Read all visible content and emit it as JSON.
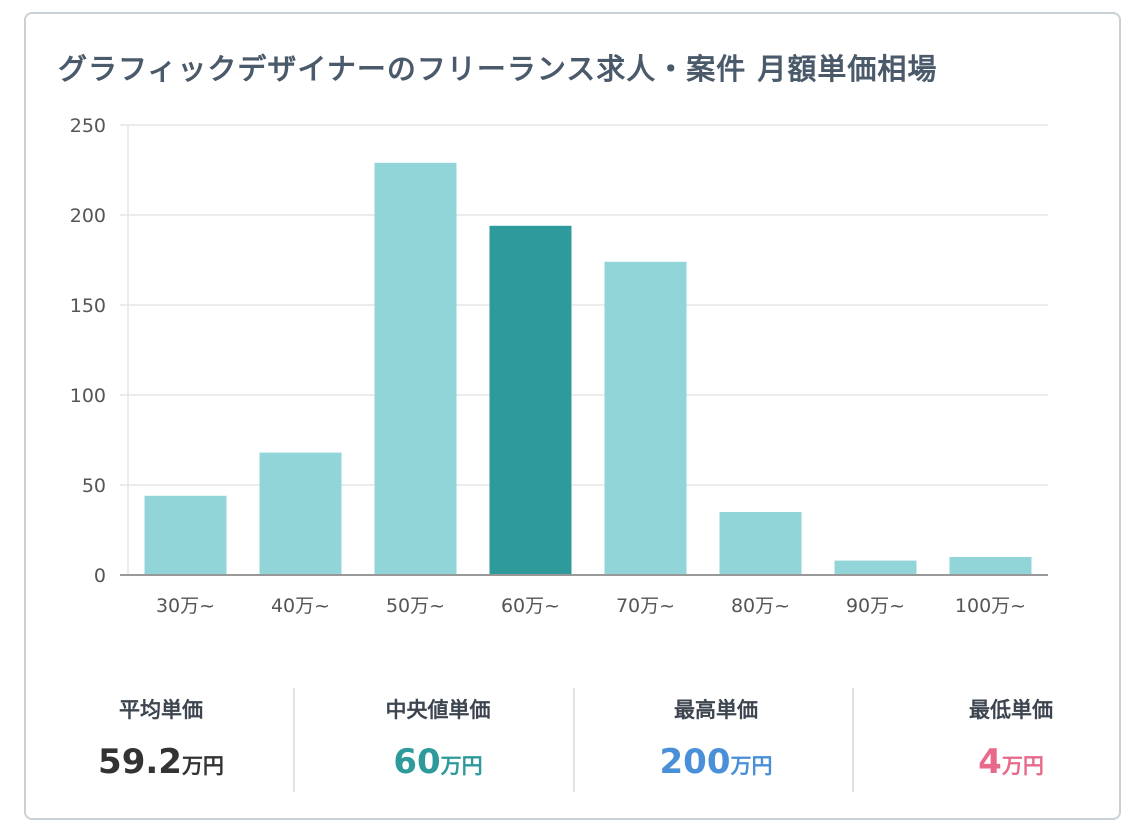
{
  "chart_data": {
    "type": "bar",
    "title": "グラフィックデザイナーのフリーランス求人・案件 月額単価相場",
    "categories": [
      "30万~",
      "40万~",
      "50万~",
      "60万~",
      "70万~",
      "80万~",
      "90万~",
      "100万~"
    ],
    "values": [
      44,
      68,
      229,
      194,
      174,
      35,
      8,
      10
    ],
    "highlight_index": 3,
    "ylim": [
      0,
      250
    ],
    "yticks": [
      0,
      50,
      100,
      150,
      200,
      250
    ],
    "grid": true,
    "xlabel": "",
    "ylabel": "",
    "colors": {
      "bar": "#92d5d9",
      "highlight": "#2e9a9c",
      "grid": "#e3e6e8",
      "axis": "#999999",
      "tick_text": "#555555"
    }
  },
  "stats": [
    {
      "label": "平均単価",
      "value": "59.2",
      "unit": "万円",
      "color": "#333333"
    },
    {
      "label": "中央値単価",
      "value": "60",
      "unit": "万円",
      "color": "#2e9a9c"
    },
    {
      "label": "最高単価",
      "value": "200",
      "unit": "万円",
      "color": "#4a90d9"
    },
    {
      "label": "最低単価",
      "value": "4",
      "unit": "万円",
      "color": "#e86a8a"
    }
  ]
}
